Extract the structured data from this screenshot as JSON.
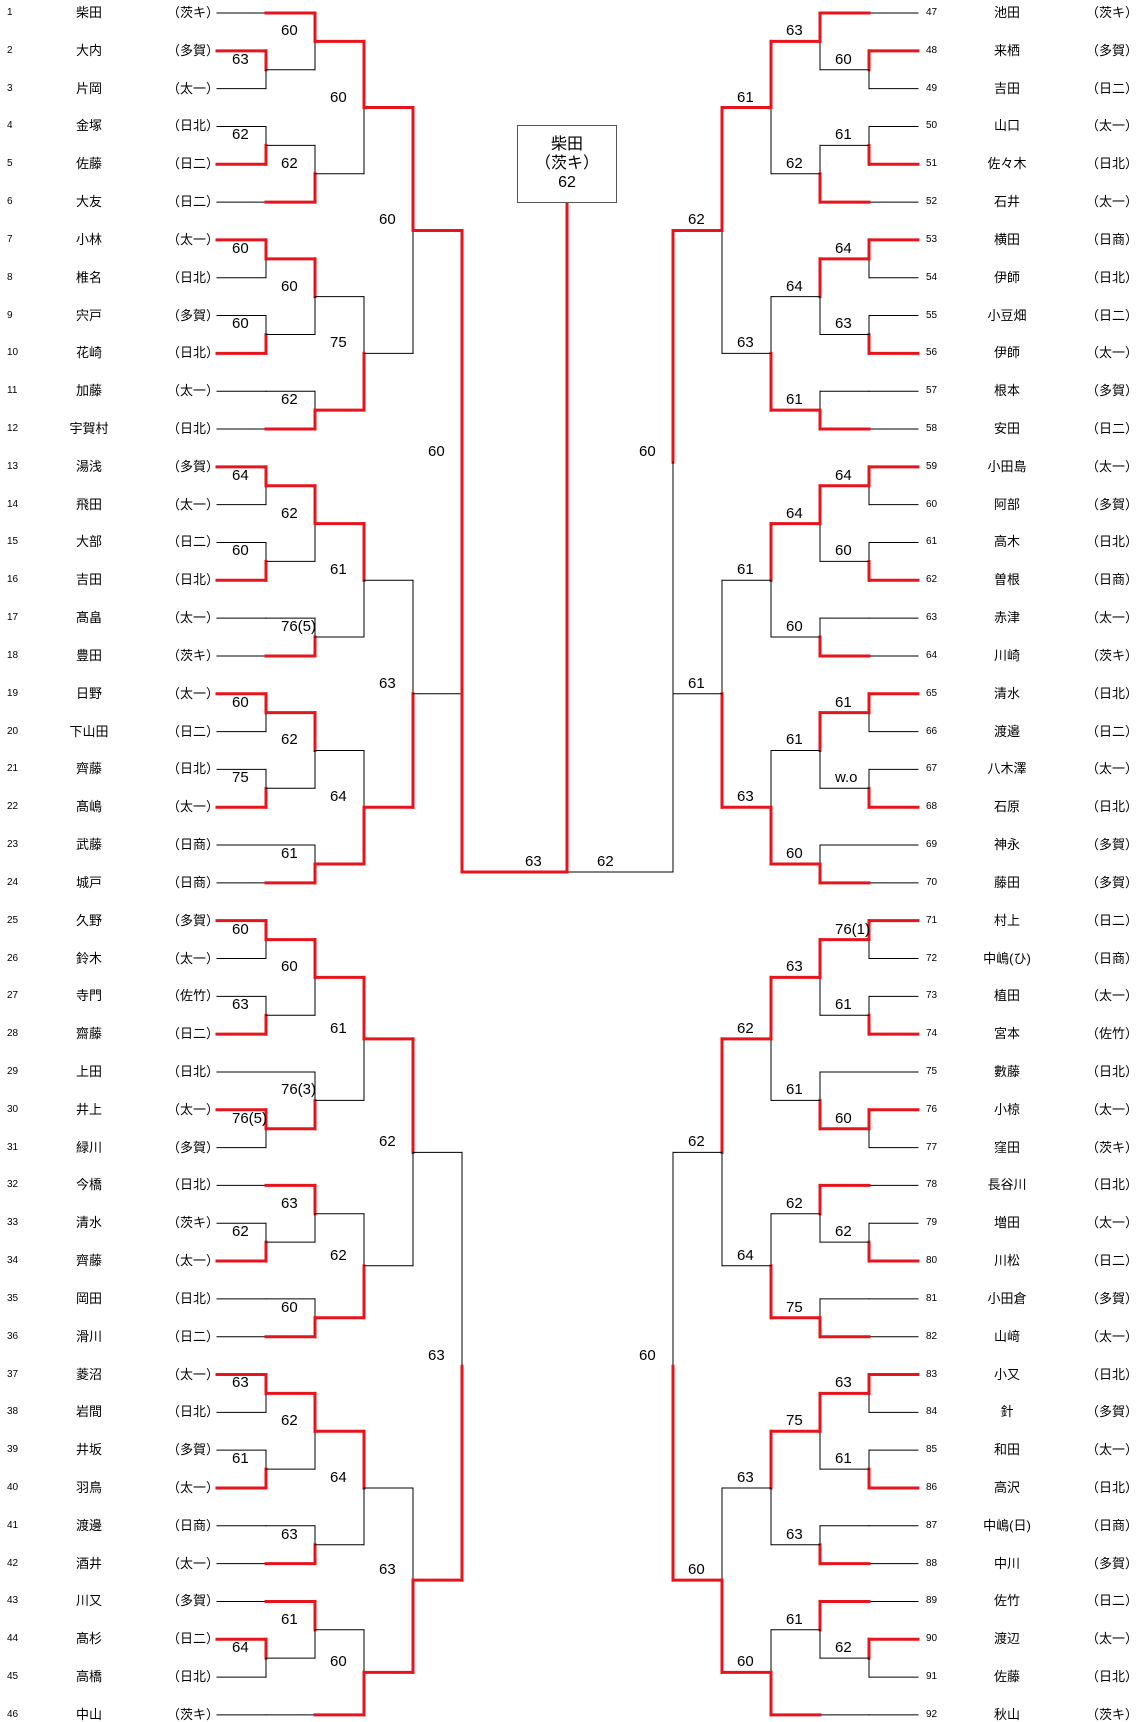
{
  "left": {
    "players": [
      {
        "seed": "1",
        "name": "柴田",
        "school": "（茨キ）"
      },
      {
        "seed": "2",
        "name": "大内",
        "school": "（多賀）"
      },
      {
        "seed": "3",
        "name": "片岡",
        "school": "（太一）"
      },
      {
        "seed": "4",
        "name": "金塚",
        "school": "（日北）"
      },
      {
        "seed": "5",
        "name": "佐藤",
        "school": "（日二）"
      },
      {
        "seed": "6",
        "name": "大友",
        "school": "（日二）"
      },
      {
        "seed": "7",
        "name": "小林",
        "school": "（太一）"
      },
      {
        "seed": "8",
        "name": "椎名",
        "school": "（日北）"
      },
      {
        "seed": "9",
        "name": "宍戸",
        "school": "（多賀）"
      },
      {
        "seed": "10",
        "name": "花崎",
        "school": "（日北）"
      },
      {
        "seed": "11",
        "name": "加藤",
        "school": "（太一）"
      },
      {
        "seed": "12",
        "name": "宇賀村",
        "school": "（日北）"
      },
      {
        "seed": "13",
        "name": "湯浅",
        "school": "（多賀）"
      },
      {
        "seed": "14",
        "name": "飛田",
        "school": "（太一）"
      },
      {
        "seed": "15",
        "name": "大部",
        "school": "（日二）"
      },
      {
        "seed": "16",
        "name": "吉田",
        "school": "（日北）"
      },
      {
        "seed": "17",
        "name": "髙畠",
        "school": "（太一）"
      },
      {
        "seed": "18",
        "name": "豊田",
        "school": "（茨キ）"
      },
      {
        "seed": "19",
        "name": "日野",
        "school": "（太一）"
      },
      {
        "seed": "20",
        "name": "下山田",
        "school": "（日二）"
      },
      {
        "seed": "21",
        "name": "齊藤",
        "school": "（日北）"
      },
      {
        "seed": "22",
        "name": "髙嶋",
        "school": "（太一）"
      },
      {
        "seed": "23",
        "name": "武藤",
        "school": "（日商）"
      },
      {
        "seed": "24",
        "name": "城戸",
        "school": "（日商）"
      },
      {
        "seed": "25",
        "name": "久野",
        "school": "（多賀）"
      },
      {
        "seed": "26",
        "name": "鈴木",
        "school": "（太一）"
      },
      {
        "seed": "27",
        "name": "寺門",
        "school": "（佐竹）"
      },
      {
        "seed": "28",
        "name": "齋藤",
        "school": "（日二）"
      },
      {
        "seed": "29",
        "name": "上田",
        "school": "（日北）"
      },
      {
        "seed": "30",
        "name": "井上",
        "school": "（太一）"
      },
      {
        "seed": "31",
        "name": "緑川",
        "school": "（多賀）"
      },
      {
        "seed": "32",
        "name": "今橋",
        "school": "（日北）"
      },
      {
        "seed": "33",
        "name": "清水",
        "school": "（茨キ）"
      },
      {
        "seed": "34",
        "name": "齊藤",
        "school": "（太一）"
      },
      {
        "seed": "35",
        "name": "岡田",
        "school": "（日北）"
      },
      {
        "seed": "36",
        "name": "滑川",
        "school": "（日二）"
      },
      {
        "seed": "37",
        "name": "菱沼",
        "school": "（太一）"
      },
      {
        "seed": "38",
        "name": "岩間",
        "school": "（日北）"
      },
      {
        "seed": "39",
        "name": "井坂",
        "school": "（多賀）"
      },
      {
        "seed": "40",
        "name": "羽鳥",
        "school": "（太一）"
      },
      {
        "seed": "41",
        "name": "渡邊",
        "school": "（日商）"
      },
      {
        "seed": "42",
        "name": "酒井",
        "school": "（太一）"
      },
      {
        "seed": "43",
        "name": "川又",
        "school": "（多賀）"
      },
      {
        "seed": "44",
        "name": "髙杉",
        "school": "（日二）"
      },
      {
        "seed": "45",
        "name": "高橋",
        "school": "（日北）"
      },
      {
        "seed": "46",
        "name": "中山",
        "school": "（茨キ）"
      }
    ]
  },
  "right": {
    "players": [
      {
        "seed": "47",
        "name": "池田",
        "school": "（茨キ）"
      },
      {
        "seed": "48",
        "name": "来栖",
        "school": "（多賀）"
      },
      {
        "seed": "49",
        "name": "吉田",
        "school": "（日二）"
      },
      {
        "seed": "50",
        "name": "山口",
        "school": "（太一）"
      },
      {
        "seed": "51",
        "name": "佐々木",
        "school": "（日北）"
      },
      {
        "seed": "52",
        "name": "石井",
        "school": "（太一）"
      },
      {
        "seed": "53",
        "name": "横田",
        "school": "（日商）"
      },
      {
        "seed": "54",
        "name": "伊師",
        "school": "（日北）"
      },
      {
        "seed": "55",
        "name": "小豆畑",
        "school": "（日二）"
      },
      {
        "seed": "56",
        "name": "伊師",
        "school": "（太一）"
      },
      {
        "seed": "57",
        "name": "根本",
        "school": "（多賀）"
      },
      {
        "seed": "58",
        "name": "安田",
        "school": "（日二）"
      },
      {
        "seed": "59",
        "name": "小田島",
        "school": "（太一）"
      },
      {
        "seed": "60",
        "name": "阿部",
        "school": "（多賀）"
      },
      {
        "seed": "61",
        "name": "高木",
        "school": "（日北）"
      },
      {
        "seed": "62",
        "name": "曽根",
        "school": "（日商）"
      },
      {
        "seed": "63",
        "name": "赤津",
        "school": "（太一）"
      },
      {
        "seed": "64",
        "name": "川崎",
        "school": "（茨キ）"
      },
      {
        "seed": "65",
        "name": "清水",
        "school": "（日北）"
      },
      {
        "seed": "66",
        "name": "渡邉",
        "school": "（日二）"
      },
      {
        "seed": "67",
        "name": "八木澤",
        "school": "（太一）"
      },
      {
        "seed": "68",
        "name": "石原",
        "school": "（日北）"
      },
      {
        "seed": "69",
        "name": "神永",
        "school": "（多賀）"
      },
      {
        "seed": "70",
        "name": "藤田",
        "school": "（多賀）"
      },
      {
        "seed": "71",
        "name": "村上",
        "school": "（日二）"
      },
      {
        "seed": "72",
        "name": "中嶋(ひ)",
        "school": "（日商）"
      },
      {
        "seed": "73",
        "name": "植田",
        "school": "（太一）"
      },
      {
        "seed": "74",
        "name": "宮本",
        "school": "（佐竹）"
      },
      {
        "seed": "75",
        "name": "數藤",
        "school": "（日北）"
      },
      {
        "seed": "76",
        "name": "小椋",
        "school": "（太一）"
      },
      {
        "seed": "77",
        "name": "窪田",
        "school": "（茨キ）"
      },
      {
        "seed": "78",
        "name": "長谷川",
        "school": "（日北）"
      },
      {
        "seed": "79",
        "name": "増田",
        "school": "（太一）"
      },
      {
        "seed": "80",
        "name": "川松",
        "school": "（日二）"
      },
      {
        "seed": "81",
        "name": "小田倉",
        "school": "（多賀）"
      },
      {
        "seed": "82",
        "name": "山﨑",
        "school": "（太一）"
      },
      {
        "seed": "83",
        "name": "小又",
        "school": "（日北）"
      },
      {
        "seed": "84",
        "name": "針",
        "school": "（多賀）"
      },
      {
        "seed": "85",
        "name": "和田",
        "school": "（太一）"
      },
      {
        "seed": "86",
        "name": "高沢",
        "school": "（日北）"
      },
      {
        "seed": "87",
        "name": "中嶋(日)",
        "school": "（日商）"
      },
      {
        "seed": "88",
        "name": "中川",
        "school": "（多賀）"
      },
      {
        "seed": "89",
        "name": "佐竹",
        "school": "（日二）"
      },
      {
        "seed": "90",
        "name": "渡辺",
        "school": "（太一）"
      },
      {
        "seed": "91",
        "name": "佐藤",
        "school": "（日北）"
      },
      {
        "seed": "92",
        "name": "秋山",
        "school": "（茨キ）"
      }
    ]
  },
  "champion": {
    "name": "柴田",
    "school": "（茨キ）",
    "score": "62"
  },
  "final": {
    "left_score": "63",
    "right_score": "62"
  },
  "colors": {
    "winner_line": "#e8141c",
    "loser_line": "#000000",
    "text": "#000000"
  },
  "matches": {
    "left": [
      {
        "id": "L_r1_0",
        "score": "63"
      },
      {
        "id": "L_r1_1",
        "score": "62"
      },
      {
        "id": "L_r1_2",
        "score": "60"
      },
      {
        "id": "L_r1_3",
        "score": "60"
      },
      {
        "id": "L_r1_4",
        "score": "64"
      },
      {
        "id": "L_r1_5",
        "score": "60"
      },
      {
        "id": "L_r1_6",
        "score": "60"
      },
      {
        "id": "L_r1_7",
        "score": "75"
      },
      {
        "id": "L_r1_8",
        "score": "60"
      },
      {
        "id": "L_r1_9",
        "score": "63"
      },
      {
        "id": "L_r1_10",
        "score": "76(5)"
      },
      {
        "id": "L_r1_11",
        "score": "62"
      },
      {
        "id": "L_r1_12",
        "score": "63"
      },
      {
        "id": "L_r1_13",
        "score": "61"
      },
      {
        "id": "L_r1_14",
        "score": "64"
      },
      {
        "id": "L_r2_0",
        "score": "60"
      },
      {
        "id": "L_r2_1",
        "score": "62"
      },
      {
        "id": "L_r2_2",
        "score": "60"
      },
      {
        "id": "L_r2_3",
        "score": "62"
      },
      {
        "id": "L_r2_4",
        "score": "62"
      },
      {
        "id": "L_r2_5",
        "score": "76(5)"
      },
      {
        "id": "L_r2_6",
        "score": "62"
      },
      {
        "id": "L_r2_7",
        "score": "61"
      },
      {
        "id": "L_r2_8",
        "score": "60"
      },
      {
        "id": "L_r2_9",
        "score": "76(3)"
      },
      {
        "id": "L_r2_10",
        "score": "63"
      },
      {
        "id": "L_r2_11",
        "score": "60"
      },
      {
        "id": "L_r2_12",
        "score": "62"
      },
      {
        "id": "L_r2_13",
        "score": "63"
      },
      {
        "id": "L_r2_14",
        "score": "61"
      },
      {
        "id": "L_r2_15",
        "score": "60"
      },
      {
        "id": "L_r3_0",
        "score": "60"
      },
      {
        "id": "L_r3_1",
        "score": "75"
      },
      {
        "id": "L_r3_2",
        "score": "61"
      },
      {
        "id": "L_r3_3",
        "score": "64"
      },
      {
        "id": "L_r3_4",
        "score": "61"
      },
      {
        "id": "L_r3_5",
        "score": "62"
      },
      {
        "id": "L_r3_6",
        "score": "64"
      },
      {
        "id": "L_r3_7",
        "score": "60"
      },
      {
        "id": "L_r4_0",
        "score": "60"
      },
      {
        "id": "L_r4_1",
        "score": "63"
      },
      {
        "id": "L_r4_2",
        "score": "62"
      },
      {
        "id": "L_r4_3",
        "score": "63"
      },
      {
        "id": "L_r5_0",
        "score": "60"
      },
      {
        "id": "L_r5_1",
        "score": "63"
      }
    ],
    "right": [
      {
        "id": "R_r1_0",
        "score": "60"
      },
      {
        "id": "R_r1_1",
        "score": "61"
      },
      {
        "id": "R_r1_2",
        "score": "64"
      },
      {
        "id": "R_r1_3",
        "score": "63"
      },
      {
        "id": "R_r1_4",
        "score": "64"
      },
      {
        "id": "R_r1_5",
        "score": "60"
      },
      {
        "id": "R_r1_6",
        "score": "61"
      },
      {
        "id": "R_r1_7",
        "score": "w.o"
      },
      {
        "id": "R_r1_8",
        "score": "76(1)"
      },
      {
        "id": "R_r1_9",
        "score": "61"
      },
      {
        "id": "R_r1_10",
        "score": "60"
      },
      {
        "id": "R_r1_11",
        "score": "62"
      },
      {
        "id": "R_r1_12",
        "score": "63"
      },
      {
        "id": "R_r1_13",
        "score": "61"
      },
      {
        "id": "R_r1_14",
        "score": "62"
      },
      {
        "id": "R_r2_0",
        "score": "63"
      },
      {
        "id": "R_r2_1",
        "score": "62"
      },
      {
        "id": "R_r2_2",
        "score": "64"
      },
      {
        "id": "R_r2_3",
        "score": "61"
      },
      {
        "id": "R_r2_4",
        "score": "64"
      },
      {
        "id": "R_r2_5",
        "score": "60"
      },
      {
        "id": "R_r2_6",
        "score": "61"
      },
      {
        "id": "R_r2_7",
        "score": "60"
      },
      {
        "id": "R_r2_8",
        "score": "63"
      },
      {
        "id": "R_r2_9",
        "score": "61"
      },
      {
        "id": "R_r2_10",
        "score": "62"
      },
      {
        "id": "R_r2_11",
        "score": "75"
      },
      {
        "id": "R_r2_12",
        "score": "75"
      },
      {
        "id": "R_r2_13",
        "score": "63"
      },
      {
        "id": "R_r2_14",
        "score": "61"
      },
      {
        "id": "R_r2_15",
        "score": "60"
      },
      {
        "id": "R_r3_0",
        "score": "61"
      },
      {
        "id": "R_r3_1",
        "score": "63"
      },
      {
        "id": "R_r3_2",
        "score": "61"
      },
      {
        "id": "R_r3_3",
        "score": "63"
      },
      {
        "id": "R_r3_4",
        "score": "62"
      },
      {
        "id": "R_r3_5",
        "score": "64"
      },
      {
        "id": "R_r3_6",
        "score": "63"
      },
      {
        "id": "R_r3_7",
        "score": "60"
      },
      {
        "id": "R_r4_0",
        "score": "62"
      },
      {
        "id": "R_r4_1",
        "score": "61"
      },
      {
        "id": "R_r4_2",
        "score": "62"
      },
      {
        "id": "R_r4_3",
        "score": "60"
      },
      {
        "id": "R_r5_0",
        "score": "60"
      },
      {
        "id": "R_r5_1",
        "score": "60"
      }
    ]
  }
}
